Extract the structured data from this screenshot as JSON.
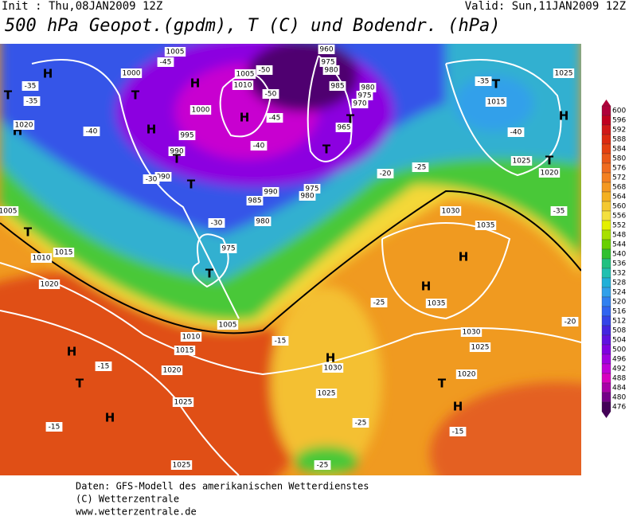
{
  "header": {
    "init": "Init : Thu,08JAN2009 12Z",
    "valid": "Valid: Sun,11JAN2009 12Z",
    "title": "500 hPa Geopot.(gpdm), T (C) und Bodendr. (hPa)"
  },
  "map": {
    "labels": [
      "H",
      "T",
      "H",
      "-35",
      "-35",
      "1020",
      "-45",
      "1005",
      "1000",
      "H",
      "T",
      "H",
      "-40",
      "1000",
      "995",
      "990",
      "T",
      "990",
      "-30",
      "T",
      "H",
      "1005",
      "1010",
      "-50",
      "-50",
      "-45",
      "-40",
      "960",
      "975",
      "980",
      "985",
      "980",
      "975",
      "970",
      "965",
      "T",
      "T",
      "990",
      "985",
      "975",
      "980",
      "980",
      "-30",
      "975",
      "T",
      "-25",
      "-20",
      "1030",
      "1035",
      "H",
      "H",
      "-25",
      "1035",
      "1030",
      "1025",
      "H",
      "1030",
      "-15",
      "1020",
      "1015",
      "1010",
      "1005",
      "H",
      "T",
      "H",
      "-15",
      "-15",
      "1025",
      "1025",
      "1020",
      "T",
      "H",
      "-15",
      "1025",
      "-25",
      "-25",
      "H",
      "T",
      "1015",
      "-40",
      "1025",
      "1020",
      "T",
      "1025",
      "-35",
      "1020",
      "1015",
      "1010",
      "T",
      "-35",
      "-20",
      "1005"
    ]
  },
  "colorbar": {
    "labels": [
      600,
      596,
      592,
      588,
      584,
      580,
      576,
      572,
      568,
      564,
      560,
      556,
      552,
      548,
      544,
      540,
      536,
      532,
      528,
      524,
      520,
      516,
      512,
      508,
      504,
      500,
      496,
      492,
      488,
      484,
      480,
      476
    ],
    "colors": [
      "#b0003a",
      "#c00020",
      "#d01818",
      "#dc2a10",
      "#e44010",
      "#ea5818",
      "#f06c20",
      "#f48020",
      "#f49820",
      "#f4b020",
      "#f4c830",
      "#f4e040",
      "#e4f000",
      "#a8e000",
      "#68d000",
      "#30c030",
      "#20c080",
      "#20c0b0",
      "#20b0d8",
      "#30a0ea",
      "#3080f0",
      "#3064f0",
      "#3444e8",
      "#4424e0",
      "#6010e0",
      "#8000e0",
      "#a000e0",
      "#c000d8",
      "#d800c0",
      "#a800a8",
      "#740088",
      "#440058"
    ]
  },
  "footer": {
    "lines": [
      "Daten: GFS-Modell des amerikanischen Wetterdienstes",
      "(C) Wetterzentrale",
      "www.wetterzentrale.de"
    ]
  }
}
